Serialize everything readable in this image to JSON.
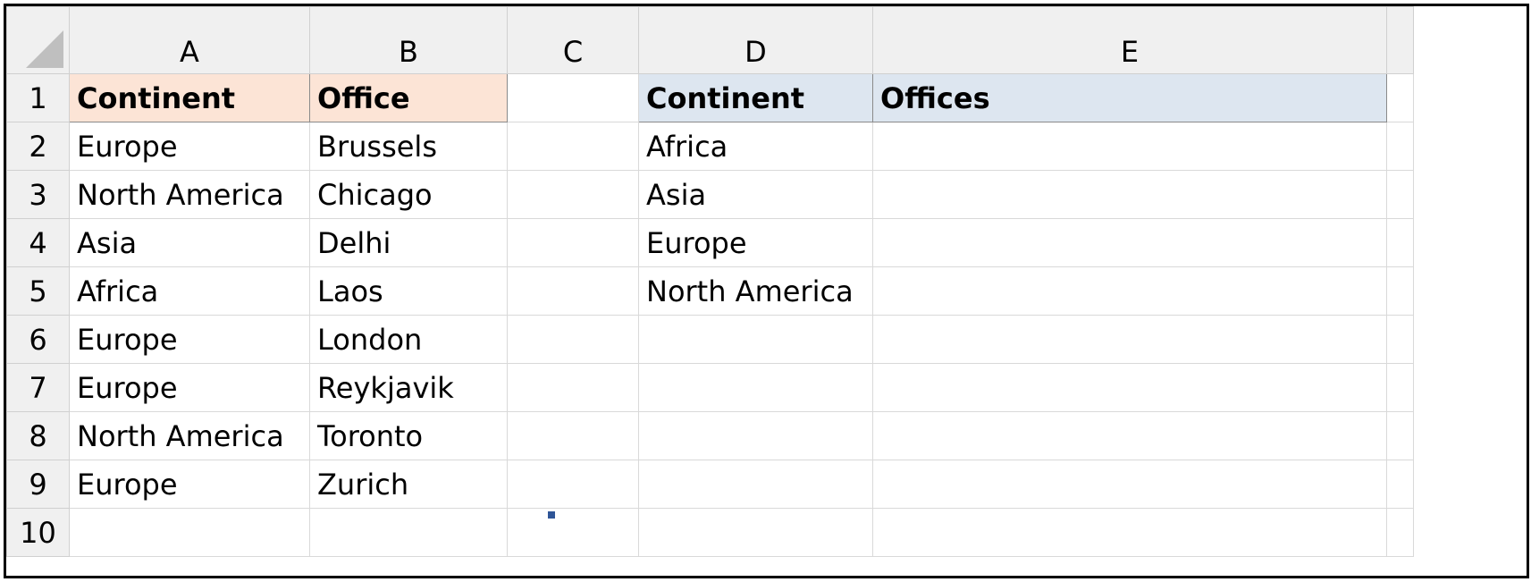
{
  "columns": [
    "A",
    "B",
    "C",
    "D",
    "E"
  ],
  "row_numbers": [
    "1",
    "2",
    "3",
    "4",
    "5",
    "6",
    "7",
    "8",
    "9",
    "10"
  ],
  "source_table": {
    "headers": [
      "Continent",
      "Office"
    ],
    "rows": [
      [
        "Europe",
        "Brussels"
      ],
      [
        "North America",
        "Chicago"
      ],
      [
        "Asia",
        "Delhi"
      ],
      [
        "Africa",
        "Laos"
      ],
      [
        "Europe",
        "London"
      ],
      [
        "Europe",
        "Reykjavik"
      ],
      [
        "North America",
        "Toronto"
      ],
      [
        "Europe",
        "Zurich"
      ]
    ]
  },
  "summary_table": {
    "headers": [
      "Continent",
      "Offices"
    ],
    "rows": [
      [
        "Africa",
        ""
      ],
      [
        "Asia",
        ""
      ],
      [
        "Europe",
        ""
      ],
      [
        "North America",
        ""
      ]
    ]
  },
  "colors": {
    "source_header_fill": "#fce4d6",
    "summary_header_fill": "#dde6f0",
    "header_background": "#f0f0f0",
    "gridline": "#d9d9d9",
    "fill_handle": "#2f5597"
  }
}
